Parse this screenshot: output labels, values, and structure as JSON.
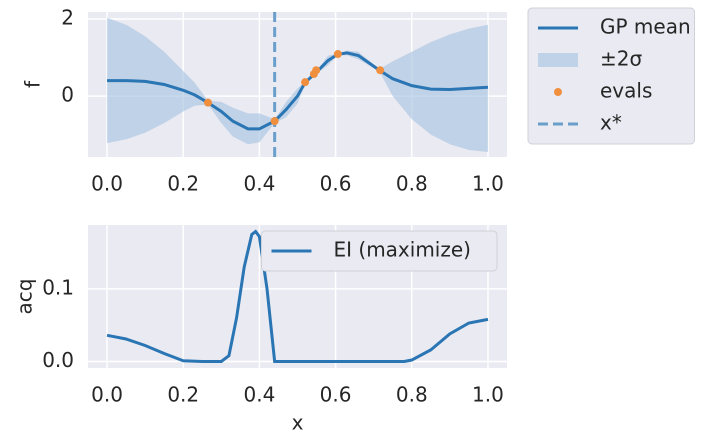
{
  "chart_data": [
    {
      "type": "line",
      "ylabel": "f",
      "x": [
        0,
        0.05,
        0.1,
        0.15,
        0.2,
        0.23,
        0.265,
        0.3,
        0.33,
        0.37,
        0.4,
        0.44,
        0.47,
        0.5,
        0.52,
        0.55,
        0.58,
        0.605,
        0.63,
        0.66,
        0.715,
        0.75,
        0.8,
        0.85,
        0.9,
        0.95,
        1.0
      ],
      "series": [
        {
          "name": "GP mean",
          "type": "line",
          "color": "#2a75b3",
          "values": [
            0.4,
            0.4,
            0.38,
            0.3,
            0.15,
            0.03,
            -0.17,
            -0.4,
            -0.65,
            -0.85,
            -0.85,
            -0.65,
            -0.35,
            0.0,
            0.35,
            0.62,
            0.92,
            1.08,
            1.12,
            1.05,
            0.67,
            0.45,
            0.27,
            0.18,
            0.17,
            0.2,
            0.23
          ]
        },
        {
          "name": "±2σ",
          "type": "band",
          "color": "#a9c4e0",
          "upper": [
            2.03,
            1.85,
            1.55,
            1.15,
            0.65,
            0.35,
            -0.12,
            -0.15,
            -0.3,
            -0.45,
            -0.45,
            -0.6,
            -0.15,
            0.2,
            0.38,
            0.65,
            1.05,
            1.1,
            1.18,
            1.15,
            0.7,
            0.9,
            1.15,
            1.4,
            1.6,
            1.75,
            1.85
          ],
          "lower": [
            -1.22,
            -1.12,
            -0.95,
            -0.7,
            -0.4,
            -0.25,
            -0.22,
            -0.7,
            -1.05,
            -1.25,
            -1.2,
            -0.7,
            -0.55,
            -0.2,
            0.32,
            0.59,
            0.8,
            1.06,
            1.06,
            0.95,
            0.64,
            0.0,
            -0.6,
            -1.0,
            -1.25,
            -1.4,
            -1.45
          ]
        },
        {
          "name": "evals",
          "type": "scatter",
          "color": "#f0903f",
          "x": [
            0.265,
            0.44,
            0.52,
            0.543,
            0.549,
            0.606,
            0.717
          ],
          "values": [
            -0.17,
            -0.65,
            0.36,
            0.57,
            0.67,
            1.09,
            0.67
          ]
        },
        {
          "name": "x*",
          "type": "vline",
          "color": "#6a9fcb",
          "x": 0.44
        }
      ],
      "xlim": [
        -0.05,
        1.05
      ],
      "ylim": [
        -1.58,
        2.18
      ],
      "xticks": [
        {
          "value": 0,
          "label": "0.0"
        },
        0.2,
        0.4,
        0.6,
        0.8,
        {
          "value": 1,
          "label": "1.0"
        }
      ],
      "yticks": [
        0,
        2
      ],
      "grid": true,
      "legend": "outside upper right"
    },
    {
      "type": "line",
      "xlabel": "x",
      "ylabel": "acq",
      "x": [
        0,
        0.05,
        0.1,
        0.15,
        0.2,
        0.25,
        0.3,
        0.32,
        0.34,
        0.36,
        0.38,
        0.39,
        0.4,
        0.42,
        0.44,
        0.5,
        0.6,
        0.7,
        0.78,
        0.8,
        0.85,
        0.9,
        0.95,
        1.0
      ],
      "series": [
        {
          "name": "EI (maximize)",
          "type": "line",
          "color": "#2a75b3",
          "values": [
            0.036,
            0.031,
            0.022,
            0.011,
            0.001,
            0,
            0,
            0.008,
            0.06,
            0.13,
            0.175,
            0.179,
            0.172,
            0.1,
            0,
            0,
            0,
            0,
            0,
            0.002,
            0.016,
            0.038,
            0.053,
            0.058
          ]
        }
      ],
      "xlim": [
        -0.05,
        1.05
      ],
      "ylim": [
        -0.009,
        0.188
      ],
      "xticks": [
        {
          "value": 0,
          "label": "0.0"
        },
        0.2,
        0.4,
        0.6,
        0.8,
        {
          "value": 1,
          "label": "1.0"
        }
      ],
      "yticks": [
        {
          "value": 0,
          "label": "0.0"
        },
        0.1
      ],
      "grid": true,
      "legend": "upper right"
    }
  ]
}
